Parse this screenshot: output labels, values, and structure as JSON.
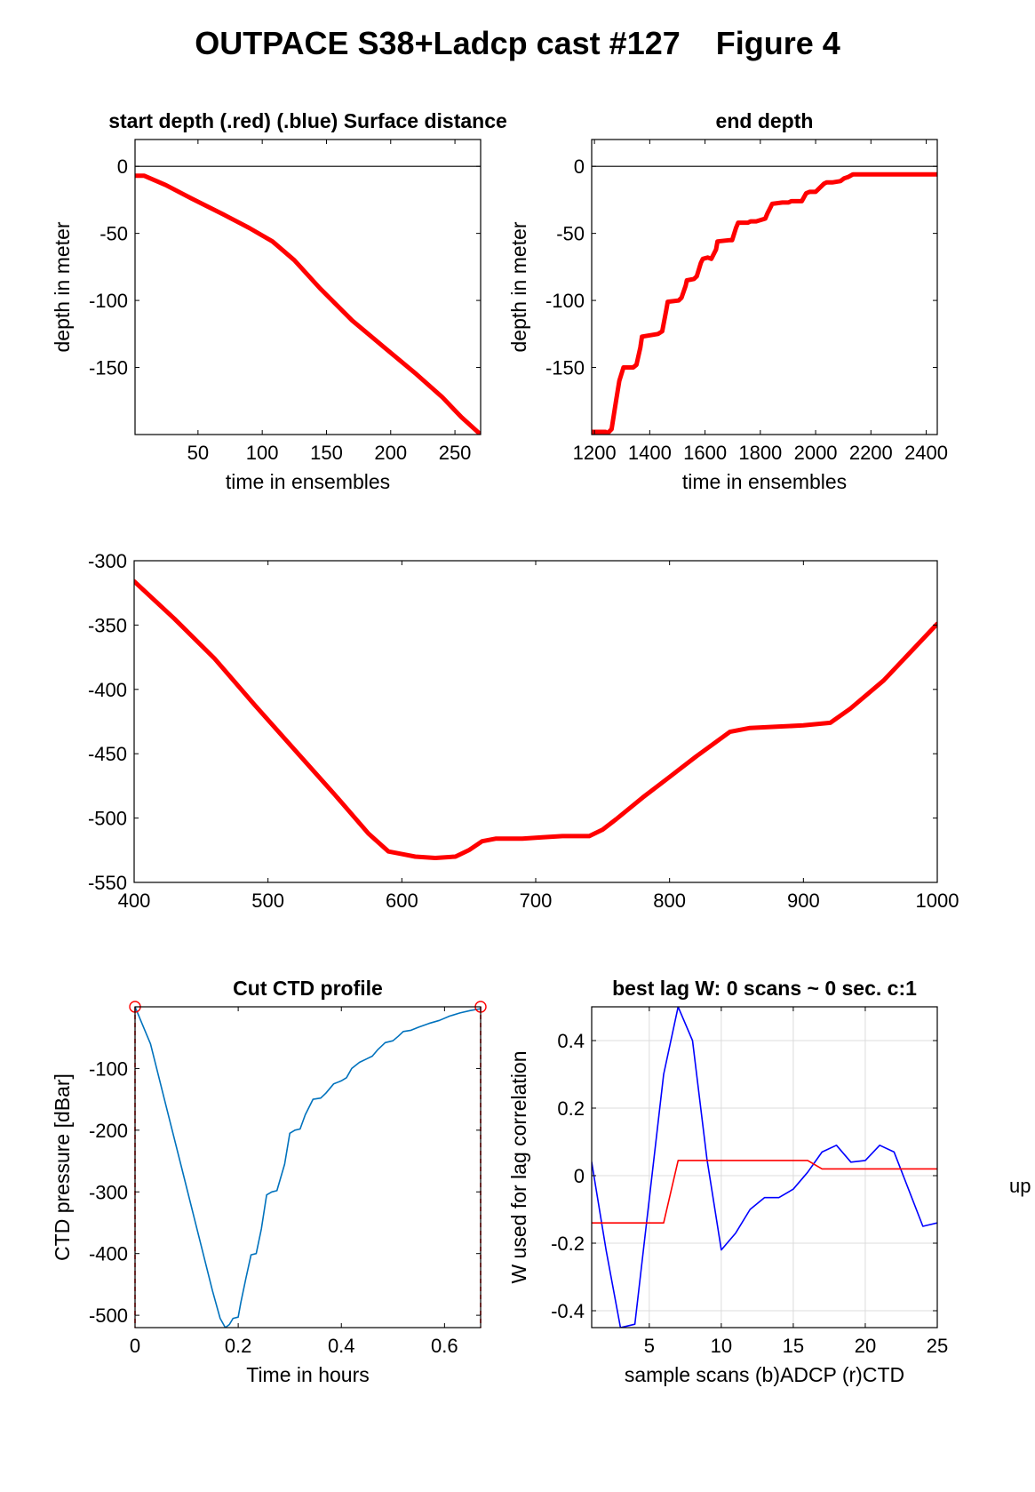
{
  "figure": {
    "title": "OUTPACE S38+Ladcp cast #127    Figure 4",
    "side_label": "up"
  },
  "chart_data": [
    {
      "id": "start",
      "type": "line",
      "title": "start depth (.red) (.blue) Surface distance",
      "xlabel": "time in ensembles",
      "ylabel": "depth in meter",
      "xlim": [
        1,
        270
      ],
      "ylim": [
        -200,
        20
      ],
      "xticks": [
        50,
        100,
        150,
        200,
        250
      ],
      "yticks": [
        0,
        -50,
        -100,
        -150
      ],
      "grid": false,
      "zero_line": true,
      "series": [
        {
          "color": "#ff0000",
          "x": [
            1,
            8,
            25,
            45,
            70,
            90,
            108,
            125,
            145,
            170,
            195,
            220,
            240,
            255,
            270
          ],
          "y": [
            -7,
            -7,
            -14,
            -24,
            -36,
            -46,
            -56,
            -70,
            -91,
            -115,
            -135,
            -155,
            -172,
            -187,
            -200
          ]
        }
      ]
    },
    {
      "id": "end",
      "type": "line",
      "title": "end depth",
      "xlabel": "time in ensembles",
      "ylabel": "depth in meter",
      "xlim": [
        1190,
        2440
      ],
      "ylim": [
        -200,
        20
      ],
      "xticks": [
        1200,
        1400,
        1600,
        1800,
        2000,
        2200,
        2400
      ],
      "yticks": [
        0,
        -50,
        -100,
        -150
      ],
      "grid": false,
      "zero_line": true,
      "series": [
        {
          "color": "#ff0000",
          "x": [
            1190,
            1240,
            1248,
            1262,
            1278,
            1290,
            1305,
            1340,
            1352,
            1366,
            1372,
            1430,
            1445,
            1460,
            1465,
            1505,
            1515,
            1530,
            1534,
            1560,
            1570,
            1585,
            1592,
            1610,
            1623,
            1640,
            1645,
            1690,
            1698,
            1712,
            1720,
            1755,
            1765,
            1775,
            1785,
            1818,
            1826,
            1838,
            1843,
            1880,
            1888,
            1902,
            1912,
            1940,
            1950,
            1966,
            1978,
            2000,
            2030,
            2040,
            2060,
            2090,
            2103,
            2117,
            2135,
            2165,
            2177,
            2188,
            2198,
            2232,
            2238,
            2248,
            2262,
            2290,
            2300,
            2318,
            2330,
            2370,
            2380,
            2400,
            2440
          ],
          "y": [
            -198,
            -198,
            -199,
            -196,
            -175,
            -160,
            -150,
            -150,
            -148,
            -135,
            -127,
            -125,
            -123,
            -107,
            -101,
            -100,
            -98,
            -89,
            -85,
            -84,
            -82,
            -72,
            -69,
            -68,
            -69,
            -62,
            -56,
            -55,
            -55,
            -46,
            -42,
            -42,
            -41,
            -41,
            -41,
            -39,
            -35,
            -30,
            -28,
            -27,
            -27,
            -27,
            -26,
            -26,
            -26,
            -20,
            -19,
            -19,
            -13,
            -12,
            -12,
            -11,
            -9,
            -8,
            -6,
            -6,
            -6,
            -6,
            -6,
            -6,
            -6,
            -6,
            -6,
            -6,
            -6,
            -6,
            -6,
            -6,
            -6,
            -6,
            -6
          ]
        }
      ]
    },
    {
      "id": "middle",
      "type": "line",
      "title": "",
      "xlabel": "",
      "ylabel": "",
      "xlim": [
        400,
        1000
      ],
      "ylim": [
        -550,
        -300
      ],
      "xticks": [
        400,
        500,
        600,
        700,
        800,
        900,
        1000
      ],
      "yticks": [
        -300,
        -350,
        -400,
        -450,
        -500,
        -550
      ],
      "grid": false,
      "zero_line": false,
      "series": [
        {
          "color": "#ff0000",
          "x": [
            400,
            430,
            460,
            490,
            520,
            550,
            575,
            590,
            600,
            610,
            625,
            640,
            650,
            660,
            670,
            690,
            705,
            720,
            740,
            750,
            760,
            780,
            800,
            820,
            845,
            860,
            880,
            900,
            920,
            935,
            960,
            1000
          ],
          "y": [
            -316,
            -345,
            -376,
            -412,
            -447,
            -482,
            -512,
            -526,
            -528,
            -530,
            -531,
            -530,
            -525,
            -518,
            -516,
            -516,
            -515,
            -514,
            -514,
            -509,
            -501,
            -484,
            -468,
            -452,
            -433,
            -430,
            -429,
            -428,
            -426,
            -415,
            -393,
            -349
          ]
        }
      ]
    },
    {
      "id": "ctd",
      "type": "line",
      "title": "Cut CTD profile",
      "xlabel": "Time in hours",
      "ylabel": "CTD pressure [dBar]",
      "xlim": [
        0,
        0.67
      ],
      "ylim": [
        -520,
        0
      ],
      "xticks": [
        0,
        0.2,
        0.4,
        0.6
      ],
      "xtick_labels": [
        "0",
        "0.2",
        "0.4",
        "0.6"
      ],
      "yticks": [
        -100,
        -200,
        -300,
        -400,
        -500
      ],
      "grid": false,
      "zero_line": false,
      "markers": [
        {
          "x": 0,
          "y": 0,
          "color": "#ff0000"
        },
        {
          "x": 0.67,
          "y": 0,
          "color": "#ff0000"
        }
      ],
      "cut_lines": {
        "color": "#ff0000",
        "x": [
          0,
          0.67
        ]
      },
      "series": [
        {
          "color": "#0072bd",
          "x": [
            0,
            0.01,
            0.03,
            0.06,
            0.09,
            0.12,
            0.15,
            0.165,
            0.175,
            0.183,
            0.19,
            0.2,
            0.205,
            0.215,
            0.225,
            0.235,
            0.245,
            0.255,
            0.265,
            0.275,
            0.29,
            0.3,
            0.31,
            0.32,
            0.33,
            0.345,
            0.36,
            0.37,
            0.385,
            0.4,
            0.41,
            0.42,
            0.435,
            0.45,
            0.46,
            0.47,
            0.485,
            0.5,
            0.51,
            0.52,
            0.535,
            0.55,
            0.57,
            0.59,
            0.61,
            0.63,
            0.65,
            0.67
          ],
          "y": [
            0,
            -20,
            -60,
            -160,
            -260,
            -360,
            -460,
            -505,
            -520,
            -515,
            -505,
            -503,
            -480,
            -440,
            -402,
            -400,
            -360,
            -305,
            -300,
            -298,
            -255,
            -205,
            -200,
            -198,
            -175,
            -150,
            -148,
            -140,
            -125,
            -120,
            -115,
            -100,
            -90,
            -84,
            -80,
            -70,
            -58,
            -55,
            -48,
            -40,
            -38,
            -33,
            -27,
            -22,
            -15,
            -10,
            -6,
            -3
          ]
        }
      ]
    },
    {
      "id": "lag",
      "type": "line",
      "title": "best lag W: 0 scans ~ 0 sec.  c:1",
      "xlabel": "sample scans (b)ADCP (r)CTD",
      "ylabel": "W used for lag correlation",
      "xlim": [
        1,
        25
      ],
      "ylim": [
        -0.45,
        0.5
      ],
      "xticks": [
        5,
        10,
        15,
        20,
        25
      ],
      "yticks": [
        0.4,
        0.2,
        0,
        -0.2,
        -0.4
      ],
      "grid": true,
      "zero_line": false,
      "series": [
        {
          "color": "#0000ff",
          "x": [
            1,
            2,
            3,
            4,
            5,
            6,
            7,
            8,
            9,
            10,
            11,
            12,
            13,
            14,
            15,
            16,
            17,
            18,
            19,
            20,
            21,
            22,
            23,
            24,
            25
          ],
          "y": [
            0.04,
            -0.22,
            -0.45,
            -0.44,
            -0.07,
            0.3,
            0.5,
            0.4,
            0.05,
            -0.22,
            -0.17,
            -0.1,
            -0.065,
            -0.065,
            -0.04,
            0.01,
            0.07,
            0.09,
            0.04,
            0.045,
            0.09,
            0.07,
            -0.04,
            -0.15,
            -0.14
          ]
        },
        {
          "color": "#ff0000",
          "x": [
            1,
            6,
            7,
            16,
            17,
            25
          ],
          "y": [
            -0.14,
            -0.14,
            0.045,
            0.045,
            0.02,
            0.02
          ]
        }
      ]
    }
  ]
}
